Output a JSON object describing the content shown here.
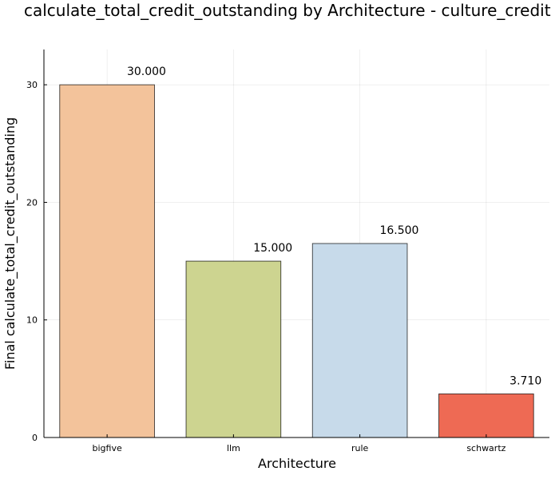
{
  "chart_data": {
    "type": "bar",
    "title": "calculate_total_credit_outstanding by Architecture - culture_credit",
    "xlabel": "Architecture",
    "ylabel": "Final calculate_total_credit_outstanding",
    "categories": [
      "bigfive",
      "llm",
      "rule",
      "schwartz"
    ],
    "values": [
      30.0,
      15.0,
      16.5,
      3.71
    ],
    "data_labels": [
      "30.000",
      "15.000",
      "16.500",
      "3.710"
    ],
    "colors": [
      "#F3C39B",
      "#CDD490",
      "#C7DAEA",
      "#EE6A54"
    ],
    "ylim": [
      0,
      33
    ],
    "yticks": [
      0,
      10,
      20,
      30
    ],
    "ytick_labels": [
      "0",
      "10",
      "20",
      "30"
    ],
    "grid": true,
    "legend": "none"
  }
}
